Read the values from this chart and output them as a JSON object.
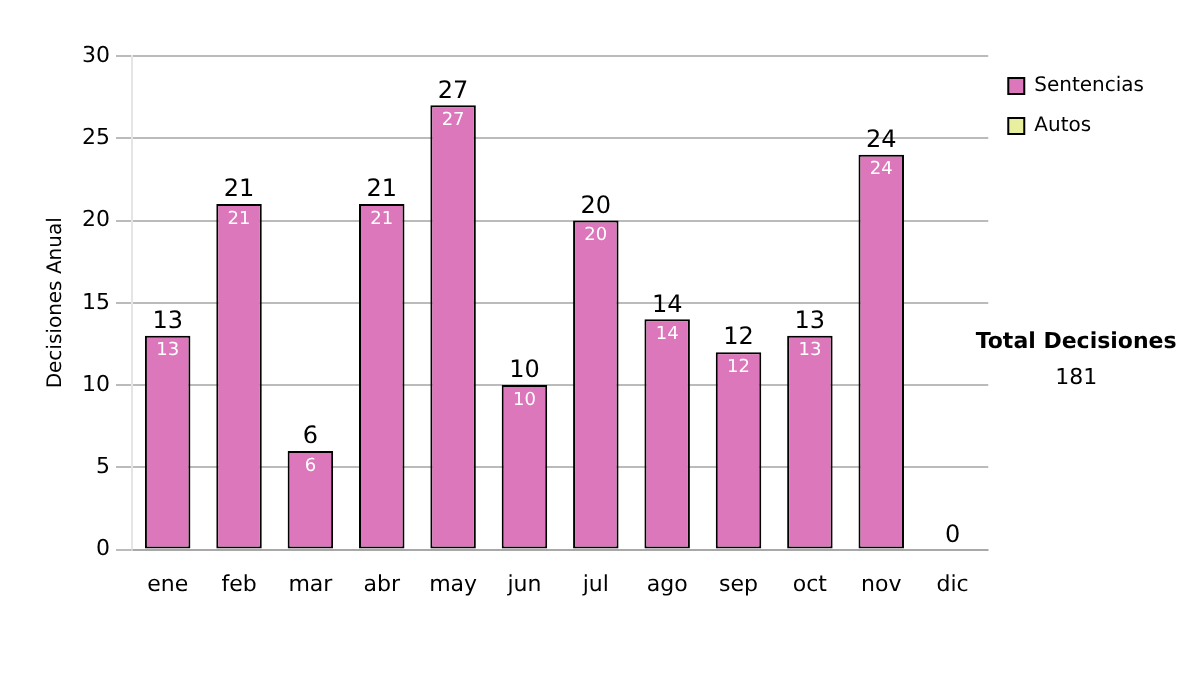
{
  "chart_data": {
    "type": "bar",
    "ylabel": "Decisiones Anual",
    "categories": [
      "ene",
      "feb",
      "mar",
      "abr",
      "may",
      "jun",
      "jul",
      "ago",
      "sep",
      "oct",
      "nov",
      "dic"
    ],
    "series": [
      {
        "name": "Sentencias",
        "color": "#dd77bb",
        "values": [
          13,
          21,
          6,
          21,
          27,
          10,
          20,
          14,
          12,
          13,
          24,
          0
        ],
        "value_labels": [
          "13",
          "21",
          "6",
          "21",
          "27",
          "10",
          "20",
          "14",
          "12",
          "13",
          "24",
          null
        ]
      },
      {
        "name": "Autos",
        "color": "#e8f0a0",
        "values": [
          0,
          0,
          0,
          0,
          0,
          0,
          0,
          0,
          0,
          0,
          0,
          0
        ]
      }
    ],
    "stacked": true,
    "totals": [
      "13",
      "21",
      "6",
      "21",
      "27",
      "10",
      "20",
      "14",
      "12",
      "13",
      "24",
      "0"
    ],
    "ylim": [
      0,
      30
    ],
    "yticks": [
      0,
      5,
      10,
      15,
      20,
      25,
      30
    ],
    "grid": "y",
    "legend": "right",
    "annotations": [
      "Total Decisiones",
      "181"
    ]
  }
}
